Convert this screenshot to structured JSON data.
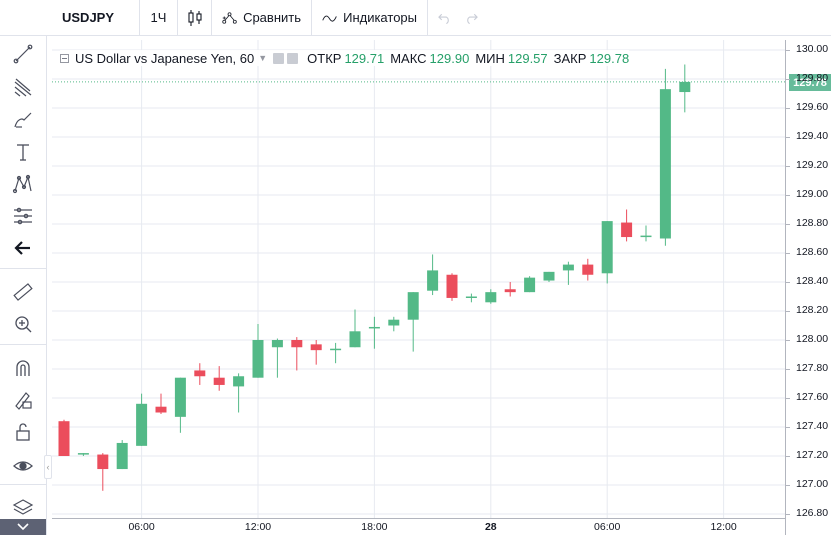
{
  "toolbar": {
    "symbol": "USDJPY",
    "interval": "1Ч",
    "compare_label": "Сравнить",
    "indicators_label": "Индикаторы"
  },
  "legend": {
    "title": "US Dollar vs Japanese Yen, 60",
    "open_label": "ОТКР",
    "open_value": "129.71",
    "high_label": "МАКС",
    "high_value": "129.90",
    "low_label": "МИН",
    "low_value": "129.57",
    "close_label": "ЗАКР",
    "close_value": "129.78"
  },
  "colors": {
    "up": "#53b987",
    "down": "#eb4d5c",
    "grid": "#e7eaf0",
    "price_line": "#53b987"
  },
  "chart_data": {
    "type": "candlestick",
    "title": "US Dollar vs Japanese Yen, 60",
    "ylim": [
      126.8,
      130.0
    ],
    "y_ticks": [
      "130.00",
      "129.80",
      "129.60",
      "129.40",
      "129.20",
      "129.00",
      "128.80",
      "128.60",
      "128.40",
      "128.20",
      "128.00",
      "127.80",
      "127.60",
      "127.40",
      "127.20",
      "127.00",
      "126.80"
    ],
    "x_ticks": [
      {
        "label": "06:00",
        "bold": false,
        "index": 4
      },
      {
        "label": "12:00",
        "bold": false,
        "index": 10
      },
      {
        "label": "18:00",
        "bold": false,
        "index": 16
      },
      {
        "label": "28",
        "bold": true,
        "index": 22
      },
      {
        "label": "06:00",
        "bold": false,
        "index": 28
      },
      {
        "label": "12:00",
        "bold": false,
        "index": 34
      }
    ],
    "current_price": "129.78",
    "candles": [
      {
        "o": 127.44,
        "h": 127.45,
        "l": 127.2,
        "c": 127.2
      },
      {
        "o": 127.21,
        "h": 127.22,
        "l": 127.2,
        "c": 127.22
      },
      {
        "o": 127.21,
        "h": 127.22,
        "l": 126.96,
        "c": 127.11
      },
      {
        "o": 127.11,
        "h": 127.31,
        "l": 127.11,
        "c": 127.29
      },
      {
        "o": 127.27,
        "h": 127.63,
        "l": 127.27,
        "c": 127.56
      },
      {
        "o": 127.54,
        "h": 127.63,
        "l": 127.49,
        "c": 127.5
      },
      {
        "o": 127.47,
        "h": 127.74,
        "l": 127.36,
        "c": 127.74
      },
      {
        "o": 127.79,
        "h": 127.84,
        "l": 127.69,
        "c": 127.75
      },
      {
        "o": 127.74,
        "h": 127.82,
        "l": 127.65,
        "c": 127.69
      },
      {
        "o": 127.68,
        "h": 127.77,
        "l": 127.5,
        "c": 127.75
      },
      {
        "o": 127.74,
        "h": 128.11,
        "l": 127.74,
        "c": 128.0
      },
      {
        "o": 127.95,
        "h": 128.01,
        "l": 127.74,
        "c": 128.0
      },
      {
        "o": 128.0,
        "h": 128.02,
        "l": 127.79,
        "c": 127.95
      },
      {
        "o": 127.97,
        "h": 128.0,
        "l": 127.83,
        "c": 127.93
      },
      {
        "o": 127.94,
        "h": 127.98,
        "l": 127.84,
        "c": 127.94
      },
      {
        "o": 127.95,
        "h": 128.21,
        "l": 127.95,
        "c": 128.06
      },
      {
        "o": 128.09,
        "h": 128.16,
        "l": 127.94,
        "c": 128.09
      },
      {
        "o": 128.1,
        "h": 128.16,
        "l": 128.06,
        "c": 128.14
      },
      {
        "o": 128.14,
        "h": 128.33,
        "l": 127.92,
        "c": 128.33
      },
      {
        "o": 128.34,
        "h": 128.59,
        "l": 128.31,
        "c": 128.48
      },
      {
        "o": 128.45,
        "h": 128.46,
        "l": 128.27,
        "c": 128.29
      },
      {
        "o": 128.29,
        "h": 128.32,
        "l": 128.26,
        "c": 128.3
      },
      {
        "o": 128.26,
        "h": 128.35,
        "l": 128.25,
        "c": 128.33
      },
      {
        "o": 128.35,
        "h": 128.4,
        "l": 128.3,
        "c": 128.33
      },
      {
        "o": 128.33,
        "h": 128.44,
        "l": 128.33,
        "c": 128.43
      },
      {
        "o": 128.41,
        "h": 128.47,
        "l": 128.4,
        "c": 128.47
      },
      {
        "o": 128.48,
        "h": 128.54,
        "l": 128.38,
        "c": 128.52
      },
      {
        "o": 128.52,
        "h": 128.56,
        "l": 128.41,
        "c": 128.45
      },
      {
        "o": 128.46,
        "h": 128.82,
        "l": 128.39,
        "c": 128.82
      },
      {
        "o": 128.81,
        "h": 128.9,
        "l": 128.68,
        "c": 128.71
      },
      {
        "o": 128.71,
        "h": 128.79,
        "l": 128.68,
        "c": 128.72
      },
      {
        "o": 128.7,
        "h": 129.87,
        "l": 128.65,
        "c": 129.73
      },
      {
        "o": 129.71,
        "h": 129.9,
        "l": 129.57,
        "c": 129.78
      }
    ]
  }
}
